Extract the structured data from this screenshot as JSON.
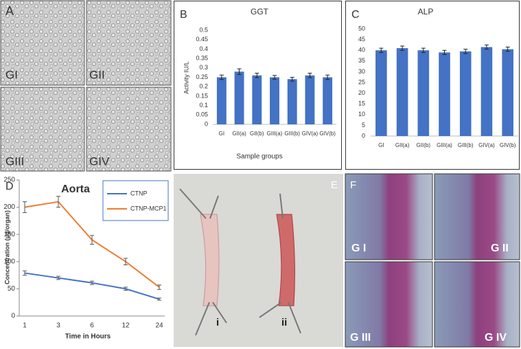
{
  "chart_data": [
    {
      "type": "bar",
      "panel_label": "B",
      "title": "GGT",
      "y_label": "Activity IU/L",
      "x_label": "Sample groups",
      "categories": [
        "GI",
        "GII(a)",
        "GII(b)",
        "GIII(a)",
        "GIII(b)",
        "GIV(a)",
        "GIV(b)"
      ],
      "values": [
        0.25,
        0.28,
        0.26,
        0.25,
        0.24,
        0.26,
        0.25
      ],
      "errors": [
        0.012,
        0.015,
        0.012,
        0.01,
        0.01,
        0.012,
        0.012
      ],
      "color": "#4472c4",
      "ylim": [
        0,
        0.5
      ],
      "yticks": [
        0,
        0.05,
        0.1,
        0.15,
        0.2,
        0.25,
        0.3,
        0.35,
        0.4,
        0.45,
        0.5
      ]
    },
    {
      "type": "bar",
      "panel_label": "C",
      "title": "ALP",
      "categories": [
        "GI",
        "GII(a)",
        "GII(b)",
        "GIII(a)",
        "GIII(b)",
        "GIV(a)",
        "GIV(b)"
      ],
      "values": [
        40,
        41,
        40,
        39,
        39.5,
        41.5,
        40.5
      ],
      "errors": [
        1,
        1,
        1,
        1,
        1,
        1,
        1
      ],
      "color": "#4472c4",
      "ylim": [
        0,
        50
      ],
      "yticks": [
        0,
        5,
        10,
        15,
        20,
        25,
        30,
        35,
        40,
        45,
        50
      ]
    },
    {
      "type": "line",
      "panel_label": "D",
      "title": "Aorta",
      "y_label": "Concentration (µg/organ)",
      "x_label": "Time in Hours",
      "categories": [
        "1",
        "3",
        "6",
        "12",
        "24"
      ],
      "series": [
        {
          "name": "CTNP",
          "color": "#4472c4",
          "values": [
            79,
            70,
            61,
            50,
            31
          ],
          "errors": [
            4,
            3,
            3,
            3,
            2
          ]
        },
        {
          "name": "CTNP-MCP1",
          "color": "#ed7d31",
          "values": [
            200,
            210,
            140,
            100,
            53
          ],
          "errors": [
            10,
            10,
            8,
            6,
            4
          ]
        }
      ],
      "ylim": [
        0,
        250
      ],
      "yticks": [
        0,
        50,
        100,
        150,
        200,
        250
      ],
      "legend": "upper right"
    }
  ],
  "image_panels": [
    {
      "label": "A",
      "captions": [
        "GI",
        "GII",
        "GIII",
        "GIV"
      ]
    },
    {
      "label": "E",
      "captions": [
        "i",
        "ii"
      ]
    },
    {
      "label": "F",
      "captions": [
        "G I",
        "G II",
        "G III",
        "G IV"
      ]
    }
  ]
}
